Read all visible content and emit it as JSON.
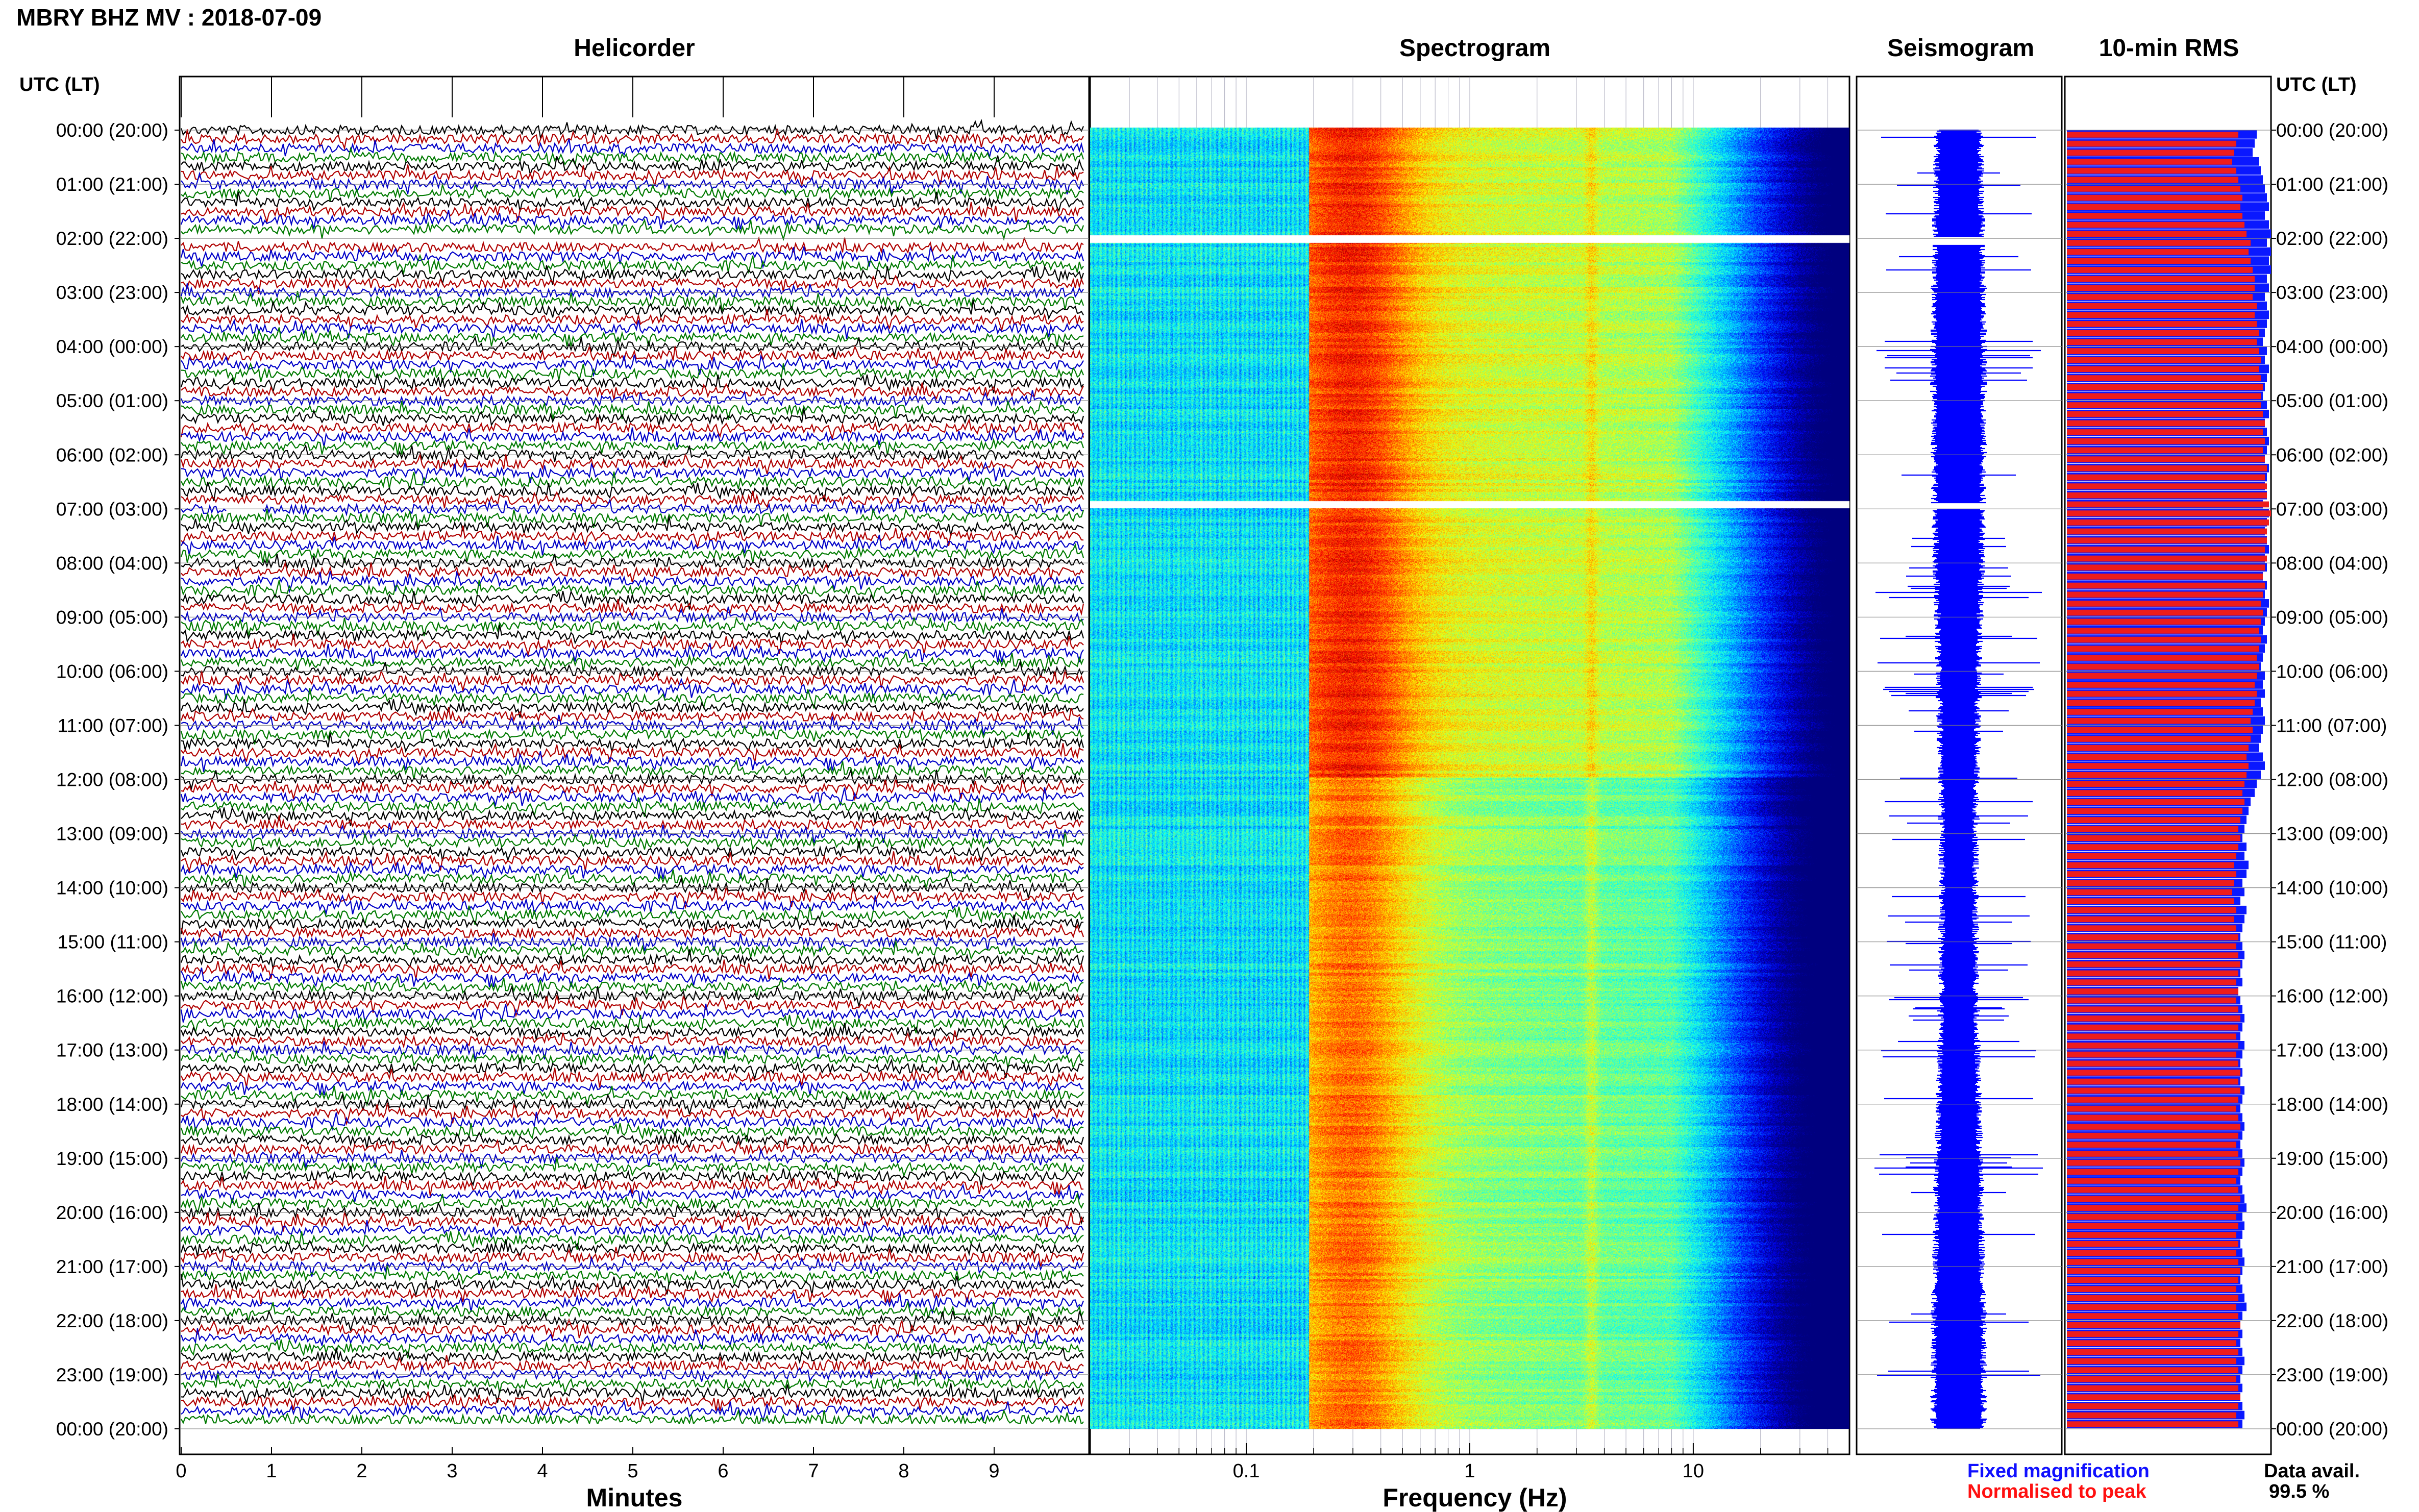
{
  "header": {
    "title": "MBRY BHZ MV : 2018-07-09"
  },
  "panels": {
    "helicorder": "Helicorder",
    "spectrogram": "Spectrogram",
    "seismogram": "Seismogram",
    "rms": "10-min RMS"
  },
  "axes": {
    "time_label_left": "UTC (LT)",
    "time_label_right": "UTC (LT)",
    "helicorder_xlabel": "Minutes",
    "spectrogram_xlabel": "Frequency (Hz)"
  },
  "legend": {
    "fixed": "Fixed magnification",
    "normalised": "Normalised to peak",
    "fixed_color": "#1010ff",
    "normalised_color": "#ff1010"
  },
  "availability": {
    "label": "Data avail.",
    "value": "99.5 %"
  },
  "chart_data": {
    "type": "heatmap",
    "title": "MBRY BHZ MV : 2018-07-09",
    "time_ticks": [
      "00:00 (20:00)",
      "01:00 (21:00)",
      "02:00 (22:00)",
      "03:00 (23:00)",
      "04:00 (00:00)",
      "05:00 (01:00)",
      "06:00 (02:00)",
      "07:00 (03:00)",
      "08:00 (04:00)",
      "09:00 (05:00)",
      "10:00 (06:00)",
      "11:00 (07:00)",
      "12:00 (08:00)",
      "13:00 (09:00)",
      "14:00 (10:00)",
      "15:00 (11:00)",
      "16:00 (12:00)",
      "17:00 (13:00)",
      "18:00 (14:00)",
      "19:00 (15:00)",
      "20:00 (16:00)",
      "21:00 (17:00)",
      "22:00 (18:00)",
      "23:00 (19:00)",
      "00:00 (20:00)"
    ],
    "helicorder": {
      "xlabel": "Minutes",
      "x_ticks": [
        0,
        1,
        2,
        3,
        4,
        5,
        6,
        7,
        8,
        9
      ],
      "xlim": [
        0,
        10
      ],
      "trace_colors": [
        "#000000",
        "#b00000",
        "#0000c8",
        "#007a00"
      ],
      "gaps": [
        {
          "hour": 2.05,
          "from_min": 0,
          "to_min": 10
        },
        {
          "hour": 6.95,
          "from_min": 0.5,
          "to_min": 0.9
        }
      ]
    },
    "spectrogram": {
      "xlabel": "Frequency (Hz)",
      "x_scale": "log",
      "xlim": [
        0.02,
        50
      ],
      "x_ticks": [
        0.1,
        1,
        10
      ],
      "peak_frequency_hz": 0.3,
      "secondary_band_hz": 3.5,
      "gaps_hour": [
        2.05,
        6.95
      ]
    },
    "seismogram": {
      "color": "#0000ff"
    },
    "rms": {
      "normalised_rms": [
        0.84,
        0.83,
        0.82,
        0.81,
        0.83,
        0.84,
        0.85,
        0.86,
        0.85,
        0.86,
        0.87,
        0.88,
        0.9,
        0.89,
        0.9,
        0.91,
        0.92,
        0.92,
        0.91,
        0.93,
        0.92,
        0.93,
        0.94,
        0.93,
        0.94,
        0.95,
        0.94,
        0.95,
        0.96,
        0.95,
        0.95,
        0.96,
        0.97,
        0.96,
        0.97,
        0.96,
        0.97,
        0.98,
        0.97,
        0.98,
        0.98,
        0.99,
        1.0,
        0.99,
        0.98,
        0.98,
        0.97,
        0.98,
        0.97,
        0.96,
        0.97,
        0.96,
        0.95,
        0.96,
        0.95,
        0.94,
        0.95,
        0.94,
        0.93,
        0.94,
        0.93,
        0.92,
        0.93,
        0.92,
        0.91,
        0.9,
        0.91,
        0.9,
        0.89,
        0.88,
        0.89,
        0.88,
        0.87,
        0.86,
        0.87,
        0.86,
        0.85,
        0.84,
        0.85,
        0.84,
        0.83,
        0.82,
        0.83,
        0.82,
        0.81,
        0.82,
        0.83,
        0.82,
        0.83,
        0.84,
        0.83,
        0.84,
        0.85,
        0.84,
        0.83,
        0.84,
        0.83,
        0.84,
        0.85,
        0.84,
        0.83,
        0.84,
        0.83,
        0.84,
        0.85,
        0.84,
        0.85,
        0.84,
        0.83,
        0.84,
        0.85,
        0.84,
        0.83,
        0.84,
        0.85,
        0.84,
        0.83,
        0.84,
        0.85,
        0.84,
        0.83,
        0.84,
        0.83,
        0.84,
        0.83,
        0.84,
        0.85,
        0.84,
        0.83,
        0.84,
        0.83,
        0.84,
        0.85,
        0.84,
        0.83,
        0.84,
        0.83,
        0.84,
        0.83,
        0.84,
        0.85,
        0.84,
        0.83,
        0.84
      ],
      "fixed_rms": [
        0.93,
        0.92,
        0.91,
        0.94,
        0.95,
        0.96,
        0.97,
        0.98,
        0.99,
        0.97,
        0.99,
        1.0,
        0.98,
        1.0,
        0.99,
        1.0,
        0.98,
        0.99,
        0.97,
        0.98,
        0.99,
        0.98,
        0.97,
        0.96,
        0.98,
        0.97,
        0.99,
        0.98,
        0.97,
        0.96,
        0.98,
        0.99,
        0.97,
        0.98,
        0.99,
        0.98,
        0.97,
        0.99,
        0.98,
        0.97,
        0.98,
        0.96,
        0.99,
        0.98,
        0.97,
        0.98,
        0.99,
        0.97,
        0.98,
        0.96,
        0.98,
        0.97,
        0.99,
        0.98,
        0.97,
        0.96,
        0.98,
        0.97,
        0.96,
        0.95,
        0.97,
        0.96,
        0.97,
        0.95,
        0.96,
        0.97,
        0.96,
        0.95,
        0.94,
        0.96,
        0.97,
        0.95,
        0.93,
        0.92,
        0.9,
        0.89,
        0.88,
        0.87,
        0.86,
        0.88,
        0.87,
        0.89,
        0.88,
        0.86,
        0.87,
        0.85,
        0.88,
        0.87,
        0.86,
        0.85,
        0.86,
        0.87,
        0.86,
        0.85,
        0.86,
        0.84,
        0.85,
        0.86,
        0.87,
        0.86,
        0.85,
        0.87,
        0.86,
        0.85,
        0.86,
        0.85,
        0.87,
        0.86,
        0.85,
        0.86,
        0.87,
        0.86,
        0.85,
        0.86,
        0.87,
        0.86,
        0.85,
        0.86,
        0.87,
        0.88,
        0.86,
        0.87,
        0.86,
        0.85,
        0.86,
        0.87,
        0.86,
        0.85,
        0.86,
        0.87,
        0.88,
        0.86,
        0.85,
        0.86,
        0.85,
        0.86,
        0.87,
        0.86,
        0.85,
        0.86,
        0.85,
        0.86,
        0.87,
        0.86
      ]
    }
  }
}
